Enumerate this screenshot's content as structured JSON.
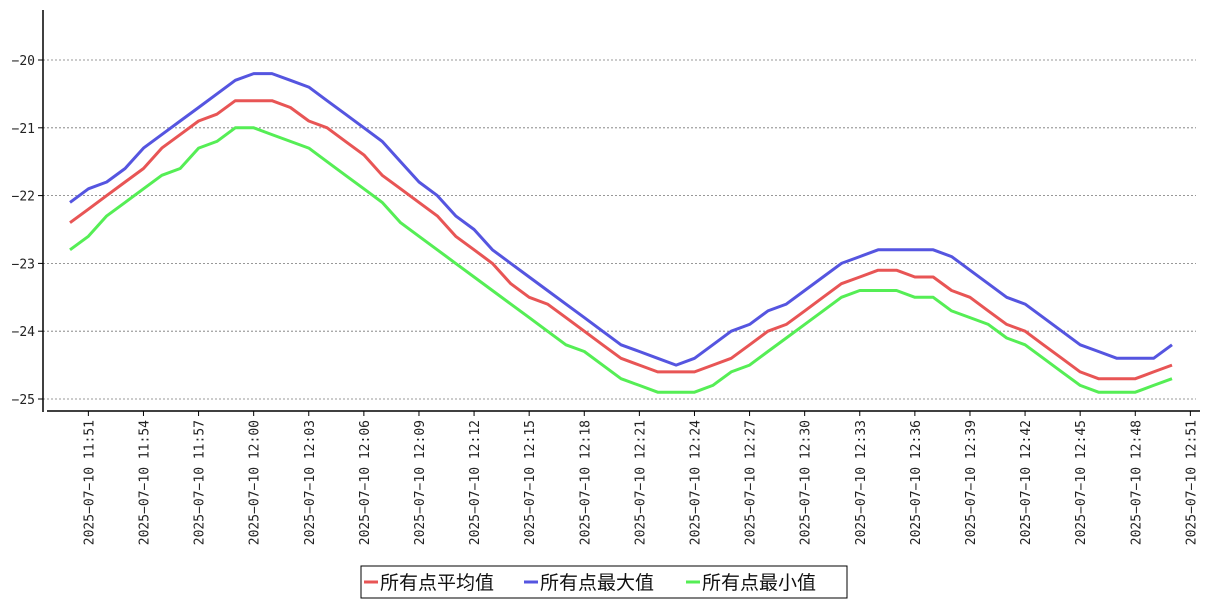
{
  "chart_data": {
    "type": "line",
    "x": [
      "2025-07-10 11:50",
      "2025-07-10 11:51",
      "2025-07-10 11:52",
      "2025-07-10 11:53",
      "2025-07-10 11:54",
      "2025-07-10 11:55",
      "2025-07-10 11:56",
      "2025-07-10 11:57",
      "2025-07-10 11:58",
      "2025-07-10 11:59",
      "2025-07-10 12:00",
      "2025-07-10 12:01",
      "2025-07-10 12:02",
      "2025-07-10 12:03",
      "2025-07-10 12:04",
      "2025-07-10 12:05",
      "2025-07-10 12:06",
      "2025-07-10 12:07",
      "2025-07-10 12:08",
      "2025-07-10 12:09",
      "2025-07-10 12:10",
      "2025-07-10 12:11",
      "2025-07-10 12:12",
      "2025-07-10 12:13",
      "2025-07-10 12:14",
      "2025-07-10 12:15",
      "2025-07-10 12:16",
      "2025-07-10 12:17",
      "2025-07-10 12:18",
      "2025-07-10 12:19",
      "2025-07-10 12:20",
      "2025-07-10 12:21",
      "2025-07-10 12:22",
      "2025-07-10 12:23",
      "2025-07-10 12:24",
      "2025-07-10 12:25",
      "2025-07-10 12:26",
      "2025-07-10 12:27",
      "2025-07-10 12:28",
      "2025-07-10 12:29",
      "2025-07-10 12:30",
      "2025-07-10 12:31",
      "2025-07-10 12:32",
      "2025-07-10 12:33",
      "2025-07-10 12:34",
      "2025-07-10 12:35",
      "2025-07-10 12:36",
      "2025-07-10 12:37",
      "2025-07-10 12:38",
      "2025-07-10 12:39",
      "2025-07-10 12:40",
      "2025-07-10 12:41",
      "2025-07-10 12:42",
      "2025-07-10 12:43",
      "2025-07-10 12:44",
      "2025-07-10 12:45",
      "2025-07-10 12:46",
      "2025-07-10 12:47",
      "2025-07-10 12:48",
      "2025-07-10 12:49",
      "2025-07-10 12:50"
    ],
    "series": [
      {
        "name": "所有点平均值",
        "color": "#e85555",
        "values": [
          -22.4,
          -22.2,
          -22.0,
          -21.8,
          -21.6,
          -21.3,
          -21.1,
          -20.9,
          -20.8,
          -20.6,
          -20.6,
          -20.6,
          -20.7,
          -20.9,
          -21.0,
          -21.2,
          -21.4,
          -21.7,
          -21.9,
          -22.1,
          -22.3,
          -22.6,
          -22.8,
          -23.0,
          -23.3,
          -23.5,
          -23.6,
          -23.8,
          -24.0,
          -24.2,
          -24.4,
          -24.5,
          -24.6,
          -24.6,
          -24.6,
          -24.5,
          -24.4,
          -24.2,
          -24.0,
          -23.9,
          -23.7,
          -23.5,
          -23.3,
          -23.2,
          -23.1,
          -23.1,
          -23.2,
          -23.2,
          -23.4,
          -23.5,
          -23.7,
          -23.9,
          -24.0,
          -24.2,
          -24.4,
          -24.6,
          -24.7,
          -24.7,
          -24.7,
          -24.6,
          -24.5
        ]
      },
      {
        "name": "所有点最大值",
        "color": "#5555e0",
        "values": [
          -22.1,
          -21.9,
          -21.8,
          -21.6,
          -21.3,
          -21.1,
          -20.9,
          -20.7,
          -20.5,
          -20.3,
          -20.2,
          -20.2,
          -20.3,
          -20.4,
          -20.6,
          -20.8,
          -21.0,
          -21.2,
          -21.5,
          -21.8,
          -22.0,
          -22.3,
          -22.5,
          -22.8,
          -23.0,
          -23.2,
          -23.4,
          -23.6,
          -23.8,
          -24.0,
          -24.2,
          -24.3,
          -24.4,
          -24.5,
          -24.4,
          -24.2,
          -24.0,
          -23.9,
          -23.7,
          -23.6,
          -23.4,
          -23.2,
          -23.0,
          -22.9,
          -22.8,
          -22.8,
          -22.8,
          -22.8,
          -22.9,
          -23.1,
          -23.3,
          -23.5,
          -23.6,
          -23.8,
          -24.0,
          -24.2,
          -24.3,
          -24.4,
          -24.4,
          -24.4,
          -24.2
        ]
      },
      {
        "name": "所有点最小值",
        "color": "#55ee55",
        "values": [
          -22.8,
          -22.6,
          -22.3,
          -22.1,
          -21.9,
          -21.7,
          -21.6,
          -21.3,
          -21.2,
          -21.0,
          -21.0,
          -21.1,
          -21.2,
          -21.3,
          -21.5,
          -21.7,
          -21.9,
          -22.1,
          -22.4,
          -22.6,
          -22.8,
          -23.0,
          -23.2,
          -23.4,
          -23.6,
          -23.8,
          -24.0,
          -24.2,
          -24.3,
          -24.5,
          -24.7,
          -24.8,
          -24.9,
          -24.9,
          -24.9,
          -24.8,
          -24.6,
          -24.5,
          -24.3,
          -24.1,
          -23.9,
          -23.7,
          -23.5,
          -23.4,
          -23.4,
          -23.4,
          -23.5,
          -23.5,
          -23.7,
          -23.8,
          -23.9,
          -24.1,
          -24.2,
          -24.4,
          -24.6,
          -24.8,
          -24.9,
          -24.9,
          -24.9,
          -24.8,
          -24.7
        ]
      }
    ],
    "y_ticks": [
      -20,
      -21,
      -22,
      -23,
      -24,
      -25
    ],
    "y_tick_labels": [
      "−20",
      "−21",
      "−22",
      "−23",
      "−24",
      "−25"
    ],
    "ylim": [
      -25.2,
      -19.3
    ],
    "x_tick_labels": [
      "2025−07−10 11:51",
      "2025−07−10 11:54",
      "2025−07−10 11:57",
      "2025−07−10 12:00",
      "2025−07−10 12:03",
      "2025−07−10 12:06",
      "2025−07−10 12:09",
      "2025−07−10 12:12",
      "2025−07−10 12:15",
      "2025−07−10 12:18",
      "2025−07−10 12:21",
      "2025−07−10 12:24",
      "2025−07−10 12:27",
      "2025−07−10 12:30",
      "2025−07−10 12:33",
      "2025−07−10 12:36",
      "2025−07−10 12:39",
      "2025−07−10 12:42",
      "2025−07−10 12:45",
      "2025−07−10 12:48",
      "2025−07−10 12:51"
    ],
    "x_tick_times": [
      "2025-07-10 11:51",
      "2025-07-10 11:54",
      "2025-07-10 11:57",
      "2025-07-10 12:00",
      "2025-07-10 12:03",
      "2025-07-10 12:06",
      "2025-07-10 12:09",
      "2025-07-10 12:12",
      "2025-07-10 12:15",
      "2025-07-10 12:18",
      "2025-07-10 12:21",
      "2025-07-10 12:24",
      "2025-07-10 12:27",
      "2025-07-10 12:30",
      "2025-07-10 12:33",
      "2025-07-10 12:36",
      "2025-07-10 12:39",
      "2025-07-10 12:42",
      "2025-07-10 12:45",
      "2025-07-10 12:48",
      "2025-07-10 12:51"
    ],
    "grid": "horizontal-dotted",
    "legend": "bottom-center"
  }
}
